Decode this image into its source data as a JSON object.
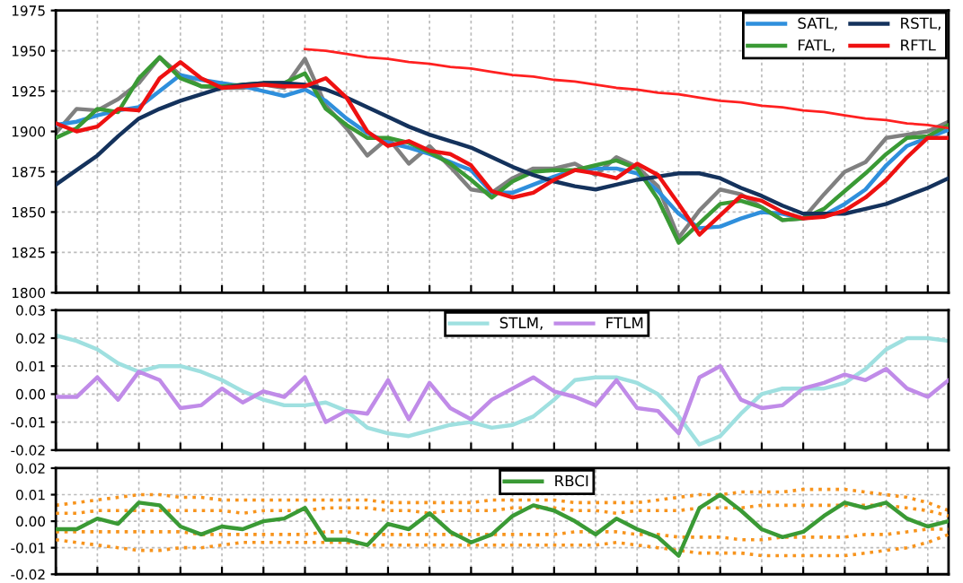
{
  "chart_data": [
    {
      "type": "line",
      "categories": [
        null,
        null,
        null,
        null,
        null,
        null,
        null,
        null,
        null,
        null,
        null,
        null,
        null,
        null,
        null,
        null,
        null,
        null,
        null,
        null,
        null,
        null,
        null,
        null,
        null,
        null,
        null,
        null,
        null,
        null,
        null,
        null,
        null,
        null,
        null,
        null,
        null,
        null,
        null,
        null,
        null,
        null,
        null,
        null
      ],
      "ylim": [
        1800,
        1975
      ],
      "yticks": [
        1800,
        1825,
        1850,
        1875,
        1900,
        1925,
        1950,
        1975
      ],
      "tick_labels": "y",
      "grid": true,
      "legend": "top right",
      "line_style": "solid",
      "marker": "none",
      "series": [
        {
          "color": "#808080",
          "values": [
            1899,
            1914,
            1913,
            1920,
            1930,
            1946,
            1935,
            1928,
            1927,
            1927,
            1929,
            1927,
            1945,
            1916,
            1902,
            1885,
            1896,
            1880,
            1891,
            1878,
            1864,
            1862,
            1871,
            1877,
            1877,
            1880,
            1873,
            1884,
            1878,
            1866,
            1834,
            1851,
            1864,
            1861,
            1853,
            1845,
            1846,
            1861,
            1875,
            1881,
            1896,
            1898,
            1900,
            1906
          ]
        },
        {
          "name": "SATL,",
          "color": "#2f8fdc",
          "values": [
            1904,
            1906,
            1910,
            1913,
            1915,
            1925,
            1935,
            1932,
            1930,
            1928,
            1925,
            1922,
            1926,
            1919,
            1908,
            1899,
            1893,
            1890,
            1886,
            1881,
            1876,
            1862,
            1862,
            1867,
            1872,
            1876,
            1877,
            1877,
            1874,
            1863,
            1849,
            1840,
            1841,
            1846,
            1850,
            1849,
            1846,
            1848,
            1855,
            1864,
            1879,
            1891,
            1896,
            1901
          ]
        },
        {
          "name": "FATL,",
          "color": "#3a9a35",
          "values": [
            1896,
            1902,
            1914,
            1912,
            1933,
            1946,
            1933,
            1928,
            1928,
            1929,
            1930,
            1930,
            1936,
            1914,
            1904,
            1896,
            1896,
            1893,
            1887,
            1880,
            1870,
            1859,
            1869,
            1875,
            1876,
            1876,
            1879,
            1882,
            1877,
            1858,
            1831,
            1843,
            1855,
            1857,
            1853,
            1845,
            1846,
            1852,
            1863,
            1874,
            1886,
            1896,
            1897,
            1904
          ]
        },
        {
          "name": "RSTL,",
          "color": "#14325c",
          "values": [
            1867,
            1876,
            1885,
            1897,
            1908,
            1914,
            1919,
            1923,
            1927,
            1929,
            1930,
            1930,
            1929,
            1926,
            1921,
            1915,
            1909,
            1903,
            1898,
            1894,
            1890,
            1884,
            1878,
            1873,
            1869,
            1866,
            1864,
            1867,
            1870,
            1872,
            1874,
            1874,
            1871,
            1865,
            1860,
            1854,
            1849,
            1849,
            1849,
            1852,
            1855,
            1860,
            1865,
            1871
          ]
        },
        {
          "name": "RFTL",
          "color": "#ee1111",
          "values": [
            1905,
            1900,
            1903,
            1914,
            1913,
            1933,
            1943,
            1933,
            1927,
            1928,
            1929,
            1928,
            1928,
            1933,
            1921,
            1900,
            1891,
            1894,
            1888,
            1886,
            1879,
            1863,
            1859,
            1862,
            1870,
            1876,
            1874,
            1871,
            1880,
            1873,
            1855,
            1836,
            1848,
            1860,
            1857,
            1850,
            1846,
            1847,
            1851,
            1859,
            1870,
            1884,
            1896,
            1896
          ]
        },
        {
          "color": "#ff2020",
          "values": [
            null,
            null,
            null,
            null,
            null,
            null,
            null,
            null,
            null,
            null,
            null,
            null,
            1951,
            1950,
            1948,
            1946,
            1945,
            1943,
            1942,
            1940,
            1939,
            1937,
            1935,
            1934,
            1932,
            1931,
            1929,
            1927,
            1926,
            1924,
            1923,
            1921,
            1919,
            1918,
            1916,
            1915,
            1913,
            1912,
            1910,
            1908,
            1907,
            1905,
            1904,
            1902
          ]
        }
      ]
    },
    {
      "type": "line",
      "categories": [
        null,
        null,
        null,
        null,
        null,
        null,
        null,
        null,
        null,
        null,
        null,
        null,
        null,
        null,
        null,
        null,
        null,
        null,
        null,
        null,
        null,
        null,
        null,
        null,
        null,
        null,
        null,
        null,
        null,
        null,
        null,
        null,
        null,
        null,
        null,
        null,
        null,
        null,
        null,
        null,
        null,
        null,
        null,
        null
      ],
      "ylim": [
        -0.02,
        0.03
      ],
      "yticks": [
        {
          "value": -0.02,
          "label": "-0.02"
        },
        {
          "value": -0.01,
          "label": "-0.01"
        },
        {
          "value": 0,
          "label": "0.00"
        },
        {
          "value": 0.01,
          "label": "0.01"
        },
        {
          "value": 0.02,
          "label": "0.02"
        },
        {
          "value": 0.03,
          "label": "0.03"
        }
      ],
      "tick_labels": "y",
      "grid": true,
      "legend": "top",
      "line_style": "solid",
      "marker": "none",
      "series": [
        {
          "name": "STLM,",
          "color": "#9fe0e0",
          "values": [
            0.021,
            0.019,
            0.016,
            0.011,
            0.008,
            0.01,
            0.01,
            0.008,
            0.005,
            0.001,
            -0.002,
            -0.004,
            -0.004,
            -0.003,
            -0.006,
            -0.012,
            -0.014,
            -0.015,
            -0.013,
            -0.011,
            -0.01,
            -0.012,
            -0.011,
            -0.008,
            -0.002,
            0.005,
            0.006,
            0.006,
            0.004,
            0.0,
            -0.008,
            -0.018,
            -0.015,
            -0.007,
            0.0,
            0.002,
            0.002,
            0.002,
            0.004,
            0.009,
            0.016,
            0.02,
            0.02,
            0.019
          ]
        },
        {
          "name": "FTLM",
          "color": "#c08be8",
          "values": [
            -0.001,
            -0.001,
            0.006,
            -0.002,
            0.008,
            0.005,
            -0.005,
            -0.004,
            0.002,
            -0.003,
            0.001,
            -0.001,
            0.006,
            -0.01,
            -0.006,
            -0.007,
            0.005,
            -0.009,
            0.004,
            -0.005,
            -0.009,
            -0.002,
            0.002,
            0.006,
            0.001,
            -0.001,
            -0.004,
            0.005,
            -0.005,
            -0.006,
            -0.014,
            0.006,
            0.01,
            -0.002,
            -0.005,
            -0.004,
            0.002,
            0.004,
            0.007,
            0.005,
            0.009,
            0.002,
            -0.001,
            0.005
          ]
        }
      ]
    },
    {
      "type": "line",
      "categories": [
        null,
        null,
        null,
        null,
        null,
        null,
        null,
        null,
        null,
        null,
        null,
        null,
        null,
        null,
        null,
        null,
        null,
        null,
        null,
        null,
        null,
        null,
        null,
        null,
        null,
        null,
        null,
        null,
        null,
        null,
        null,
        null,
        null,
        null,
        null,
        null,
        null,
        null,
        null,
        null,
        null,
        null,
        null,
        null
      ],
      "ylim": [
        -0.02,
        0.02
      ],
      "yticks": [
        {
          "value": -0.02,
          "label": "-0.02"
        },
        {
          "value": -0.01,
          "label": "-0.01"
        },
        {
          "value": 0,
          "label": "0.00"
        },
        {
          "value": 0.01,
          "label": "0.01"
        },
        {
          "value": 0.02,
          "label": "0.02"
        }
      ],
      "tick_labels": "y",
      "grid": true,
      "legend": "top",
      "line_style": "solid",
      "marker": "none",
      "series": [
        {
          "color": "#f7941d",
          "line_style": "dotted",
          "values": [
            0.006,
            0.007,
            0.008,
            0.009,
            0.01,
            0.01,
            0.009,
            0.009,
            0.008,
            0.008,
            0.008,
            0.008,
            0.008,
            0.008,
            0.008,
            0.008,
            0.007,
            0.007,
            0.007,
            0.007,
            0.007,
            0.008,
            0.008,
            0.008,
            0.008,
            0.007,
            0.007,
            0.007,
            0.007,
            0.008,
            0.009,
            0.01,
            0.01,
            0.011,
            0.011,
            0.011,
            0.012,
            0.012,
            0.012,
            0.011,
            0.01,
            0.009,
            0.007,
            0.004
          ]
        },
        {
          "color": "#f7941d",
          "line_style": "dotted",
          "values": [
            0.003,
            0.003,
            0.004,
            0.004,
            0.004,
            0.004,
            0.004,
            0.004,
            0.004,
            0.003,
            0.004,
            0.004,
            0.004,
            0.005,
            0.005,
            0.005,
            0.004,
            0.004,
            0.003,
            0.004,
            0.004,
            0.004,
            0.005,
            0.005,
            0.005,
            0.004,
            0.004,
            0.003,
            0.004,
            0.004,
            0.004,
            0.005,
            0.005,
            0.005,
            0.006,
            0.006,
            0.006,
            0.006,
            0.006,
            0.006,
            0.006,
            0.005,
            0.004,
            0.002
          ]
        },
        {
          "color": "#f7941d",
          "line_style": "dotted",
          "values": [
            -0.004,
            -0.004,
            -0.004,
            -0.004,
            -0.004,
            -0.004,
            -0.004,
            -0.005,
            -0.005,
            -0.005,
            -0.005,
            -0.005,
            -0.005,
            -0.004,
            -0.004,
            -0.005,
            -0.005,
            -0.005,
            -0.005,
            -0.005,
            -0.005,
            -0.005,
            -0.005,
            -0.005,
            -0.005,
            -0.004,
            -0.004,
            -0.004,
            -0.005,
            -0.005,
            -0.006,
            -0.006,
            -0.006,
            -0.007,
            -0.007,
            -0.006,
            -0.006,
            -0.006,
            -0.006,
            -0.005,
            -0.005,
            -0.004,
            -0.003,
            -0.003
          ]
        },
        {
          "color": "#f7941d",
          "line_style": "dotted",
          "values": [
            -0.007,
            -0.008,
            -0.009,
            -0.01,
            -0.011,
            -0.011,
            -0.01,
            -0.01,
            -0.009,
            -0.008,
            -0.008,
            -0.008,
            -0.008,
            -0.008,
            -0.008,
            -0.009,
            -0.009,
            -0.009,
            -0.009,
            -0.009,
            -0.009,
            -0.009,
            -0.009,
            -0.009,
            -0.009,
            -0.009,
            -0.009,
            -0.008,
            -0.009,
            -0.01,
            -0.011,
            -0.012,
            -0.012,
            -0.012,
            -0.013,
            -0.013,
            -0.013,
            -0.013,
            -0.013,
            -0.012,
            -0.011,
            -0.01,
            -0.008,
            -0.005
          ]
        },
        {
          "name": "RBCI",
          "color": "#3a9a35",
          "values": [
            -0.003,
            -0.003,
            0.001,
            -0.001,
            0.007,
            0.006,
            -0.002,
            -0.005,
            -0.002,
            -0.003,
            0.0,
            0.001,
            0.005,
            -0.007,
            -0.007,
            -0.009,
            -0.001,
            -0.003,
            0.003,
            -0.004,
            -0.008,
            -0.005,
            0.002,
            0.006,
            0.004,
            0.0,
            -0.005,
            0.001,
            -0.003,
            -0.006,
            -0.013,
            0.005,
            0.01,
            0.004,
            -0.003,
            -0.006,
            -0.004,
            0.002,
            0.007,
            0.005,
            0.007,
            0.001,
            -0.002,
            0.0
          ]
        }
      ]
    }
  ]
}
